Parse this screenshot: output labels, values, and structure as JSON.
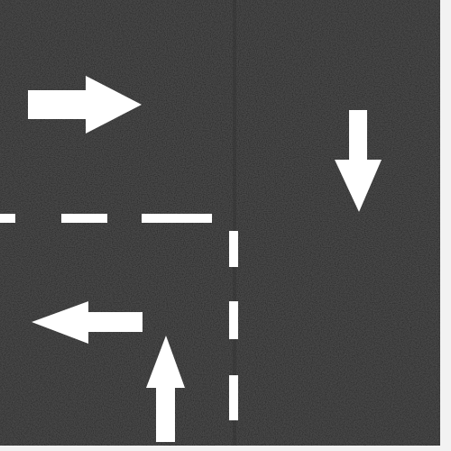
{
  "scene": {
    "kind": "top-down road intersection tile",
    "colors": {
      "asphalt": "#1c1c1c",
      "asphalt_light": "#262626",
      "marking": "#ffffff",
      "border": "#f2f2f2"
    },
    "arrows": [
      {
        "id": "arrow-east",
        "direction": "right"
      },
      {
        "id": "arrow-south",
        "direction": "down"
      },
      {
        "id": "arrow-west",
        "direction": "left"
      },
      {
        "id": "arrow-north",
        "direction": "up"
      }
    ],
    "markings": [
      {
        "id": "dashed-horizontal",
        "style": "dashed",
        "orientation": "horizontal"
      },
      {
        "id": "dashed-vertical",
        "style": "dashed",
        "orientation": "vertical"
      }
    ]
  }
}
